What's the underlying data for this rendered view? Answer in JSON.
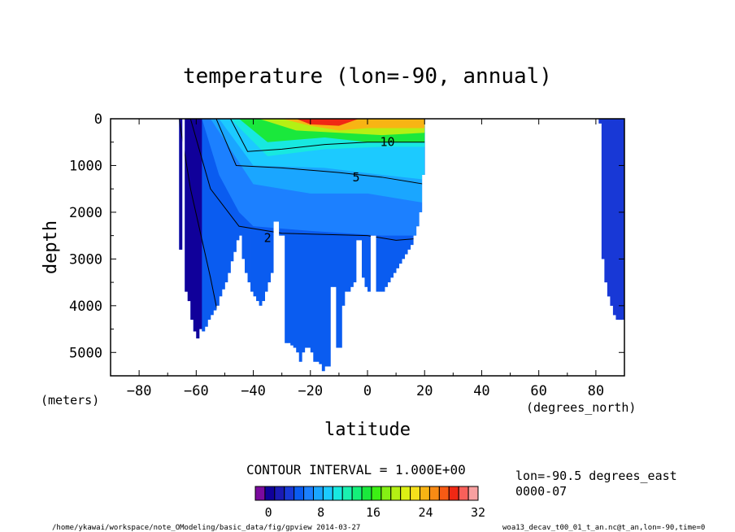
{
  "chart_data": {
    "type": "contour",
    "title": "temperature (lon=-90, annual)",
    "xlabel": "latitude",
    "ylabel": "depth",
    "x_units": "(degrees_north)",
    "y_units": "(meters)",
    "xlim": [
      -90,
      90
    ],
    "ylim": [
      5500,
      0
    ],
    "x_ticks": [
      -80,
      -60,
      -40,
      -20,
      0,
      20,
      40,
      60,
      80
    ],
    "y_ticks": [
      0,
      1000,
      2000,
      3000,
      4000,
      5000
    ],
    "contour_labels": [
      "10",
      "5",
      "2"
    ],
    "contour_interval_text": "CONTOUR INTERVAL = 1.000E+00",
    "colorbar": {
      "labels": [
        "0",
        "8",
        "16",
        "24",
        "32"
      ],
      "values": [
        0,
        8,
        16,
        24,
        32
      ],
      "colors": [
        "#7a0a9e",
        "#10009a",
        "#1a1ab4",
        "#1838d6",
        "#0a5cf0",
        "#1c80ff",
        "#1aa6ff",
        "#1ccaff",
        "#18e8e0",
        "#1af0b0",
        "#14f07a",
        "#1ae83c",
        "#3cf014",
        "#84f014",
        "#b4f014",
        "#dcf014",
        "#f5e01c",
        "#f8b414",
        "#f88a14",
        "#f85a14",
        "#f02814",
        "#f8605a",
        "#f8a0a0"
      ],
      "range": [
        -2,
        32
      ]
    },
    "info_line1": "lon=-90.5 degrees_east",
    "info_line2": "0000-07",
    "footer_left": "/home/ykawai/workspace/note_OModeling/basic_data/fig/gpview  2014-03-27",
    "footer_right": "woa13_decav_t00_01_t_an.nc@t_an,lon=-90,time=0",
    "data_columns": [
      {
        "lat": -65.5,
        "bottom": 2800
      },
      {
        "lat": -63.5,
        "bottom": 3700
      },
      {
        "lat": -62.5,
        "bottom": 3900
      },
      {
        "lat": -61.5,
        "bottom": 4300
      },
      {
        "lat": -60.5,
        "bottom": 4550
      },
      {
        "lat": -59.5,
        "bottom": 4700
      },
      {
        "lat": -58.5,
        "bottom": 4500
      },
      {
        "lat": -57.5,
        "bottom": 4550
      },
      {
        "lat": -56.5,
        "bottom": 4450
      },
      {
        "lat": -55.5,
        "bottom": 4300
      },
      {
        "lat": -54.5,
        "bottom": 4200
      },
      {
        "lat": -53.5,
        "bottom": 4100
      },
      {
        "lat": -52.5,
        "bottom": 4000
      },
      {
        "lat": -51.5,
        "bottom": 3800
      },
      {
        "lat": -50.5,
        "bottom": 3650
      },
      {
        "lat": -49.5,
        "bottom": 3500
      },
      {
        "lat": -48.5,
        "bottom": 3300
      },
      {
        "lat": -47.5,
        "bottom": 3050
      },
      {
        "lat": -46.5,
        "bottom": 2850
      },
      {
        "lat": -45.5,
        "bottom": 2600
      },
      {
        "lat": -44.5,
        "bottom": 2500
      },
      {
        "lat": -43.5,
        "bottom": 3000
      },
      {
        "lat": -42.5,
        "bottom": 3300
      },
      {
        "lat": -41.5,
        "bottom": 3500
      },
      {
        "lat": -40.5,
        "bottom": 3700
      },
      {
        "lat": -39.5,
        "bottom": 3800
      },
      {
        "lat": -38.5,
        "bottom": 3900
      },
      {
        "lat": -37.5,
        "bottom": 4000
      },
      {
        "lat": -36.5,
        "bottom": 3900
      },
      {
        "lat": -35.5,
        "bottom": 3700
      },
      {
        "lat": -34.5,
        "bottom": 3500
      },
      {
        "lat": -33.5,
        "bottom": 3300
      },
      {
        "lat": -32.5,
        "bottom": 2200
      },
      {
        "lat": -31.5,
        "bottom": 2200
      },
      {
        "lat": -30.5,
        "bottom": 2500
      },
      {
        "lat": -29.5,
        "bottom": 2500
      },
      {
        "lat": -28.5,
        "bottom": 4800
      },
      {
        "lat": -27.5,
        "bottom": 4800
      },
      {
        "lat": -26.5,
        "bottom": 4850
      },
      {
        "lat": -25.5,
        "bottom": 4900
      },
      {
        "lat": -24.5,
        "bottom": 5000
      },
      {
        "lat": -23.5,
        "bottom": 5200
      },
      {
        "lat": -22.5,
        "bottom": 5000
      },
      {
        "lat": -21.5,
        "bottom": 4900
      },
      {
        "lat": -20.5,
        "bottom": 4900
      },
      {
        "lat": -19.5,
        "bottom": 5000
      },
      {
        "lat": -18.5,
        "bottom": 5200
      },
      {
        "lat": -17.5,
        "bottom": 5200
      },
      {
        "lat": -16.5,
        "bottom": 5250
      },
      {
        "lat": -15.5,
        "bottom": 5400
      },
      {
        "lat": -14.5,
        "bottom": 5300
      },
      {
        "lat": -13.5,
        "bottom": 5300
      },
      {
        "lat": -12.5,
        "bottom": 3600
      },
      {
        "lat": -11.5,
        "bottom": 3600
      },
      {
        "lat": -10.5,
        "bottom": 4900
      },
      {
        "lat": -9.5,
        "bottom": 4900
      },
      {
        "lat": -8.5,
        "bottom": 4000
      },
      {
        "lat": -7.5,
        "bottom": 3700
      },
      {
        "lat": -6.5,
        "bottom": 3700
      },
      {
        "lat": -5.5,
        "bottom": 3600
      },
      {
        "lat": -4.5,
        "bottom": 3500
      },
      {
        "lat": -3.5,
        "bottom": 2600
      },
      {
        "lat": -2.5,
        "bottom": 2600
      },
      {
        "lat": -1.5,
        "bottom": 3400
      },
      {
        "lat": -0.5,
        "bottom": 3600
      },
      {
        "lat": 0.5,
        "bottom": 3700
      },
      {
        "lat": 1.5,
        "bottom": 2500
      },
      {
        "lat": 2.5,
        "bottom": 2500
      },
      {
        "lat": 3.5,
        "bottom": 3700
      },
      {
        "lat": 4.5,
        "bottom": 3700
      },
      {
        "lat": 5.5,
        "bottom": 3700
      },
      {
        "lat": 6.5,
        "bottom": 3600
      },
      {
        "lat": 7.5,
        "bottom": 3500
      },
      {
        "lat": 8.5,
        "bottom": 3400
      },
      {
        "lat": 9.5,
        "bottom": 3300
      },
      {
        "lat": 10.5,
        "bottom": 3200
      },
      {
        "lat": 11.5,
        "bottom": 3100
      },
      {
        "lat": 12.5,
        "bottom": 3000
      },
      {
        "lat": 13.5,
        "bottom": 2900
      },
      {
        "lat": 14.5,
        "bottom": 2800
      },
      {
        "lat": 15.5,
        "bottom": 2700
      },
      {
        "lat": 16.5,
        "bottom": 2500
      },
      {
        "lat": 17.5,
        "bottom": 2300
      },
      {
        "lat": 18.5,
        "bottom": 2000
      },
      {
        "lat": 19.5,
        "bottom": 1200
      },
      {
        "lat": 79.5,
        "bottom": 0
      },
      {
        "lat": 80.5,
        "bottom": 0
      },
      {
        "lat": 81.5,
        "bottom": 100
      },
      {
        "lat": 82.5,
        "bottom": 3000
      },
      {
        "lat": 83.5,
        "bottom": 3500
      },
      {
        "lat": 84.5,
        "bottom": 3800
      },
      {
        "lat": 85.5,
        "bottom": 4000
      },
      {
        "lat": 86.5,
        "bottom": 4200
      },
      {
        "lat": 87.5,
        "bottom": 4300
      },
      {
        "lat": 88.5,
        "bottom": 4300
      },
      {
        "lat": 89.5,
        "bottom": 4300
      }
    ],
    "bands": [
      {
        "name": "surface-warm",
        "level": 28,
        "color": "#f02814",
        "top_lat": [
          -25,
          -3
        ],
        "points": [
          [
            -25,
            0
          ],
          [
            -15,
            0
          ],
          [
            -5,
            0
          ],
          [
            -3,
            0
          ],
          [
            -10,
            150
          ],
          [
            -20,
            120
          ]
        ]
      },
      {
        "name": "band-20",
        "level": 22,
        "color": "#f8b414",
        "points": [
          [
            -30,
            0
          ],
          [
            20,
            0
          ],
          [
            20,
            200
          ],
          [
            0,
            200
          ],
          [
            -10,
            250
          ],
          [
            -20,
            150
          ]
        ]
      },
      {
        "name": "band-16",
        "level": 16,
        "color": "#b4f014",
        "points": [
          [
            -38,
            0
          ],
          [
            20,
            0
          ],
          [
            20,
            300
          ],
          [
            5,
            350
          ],
          [
            -10,
            300
          ],
          [
            -25,
            250
          ]
        ]
      },
      {
        "name": "band-12",
        "level": 12,
        "color": "#1ae83c",
        "points": [
          [
            -45,
            0
          ],
          [
            20,
            0
          ],
          [
            20,
            500
          ],
          [
            0,
            500
          ],
          [
            -15,
            400
          ],
          [
            -35,
            500
          ]
        ]
      },
      {
        "name": "band-10",
        "level": 10,
        "color": "#18e8e0",
        "points": [
          [
            -48,
            0
          ],
          [
            20,
            0
          ],
          [
            20,
            600
          ],
          [
            5,
            600
          ],
          [
            -15,
            650
          ],
          [
            -35,
            800
          ]
        ]
      },
      {
        "name": "band-6",
        "level": 6,
        "color": "#1ccaff",
        "points": [
          [
            -52,
            0
          ],
          [
            20,
            0
          ],
          [
            20,
            1300
          ],
          [
            5,
            1200
          ],
          [
            -15,
            1050
          ],
          [
            -40,
            1000
          ]
        ]
      },
      {
        "name": "band-4",
        "level": 4,
        "color": "#1aa6ff",
        "points": [
          [
            -55,
            0
          ],
          [
            20,
            0
          ],
          [
            20,
            1800
          ],
          [
            0,
            1600
          ],
          [
            -20,
            1600
          ],
          [
            -40,
            1400
          ]
        ]
      },
      {
        "name": "band-3",
        "level": 3,
        "color": "#1c80ff",
        "points": [
          [
            -58,
            0
          ],
          [
            20,
            0
          ],
          [
            20,
            2500
          ],
          [
            5,
            2500
          ],
          [
            -20,
            2400
          ],
          [
            -40,
            2300
          ],
          [
            -45,
            2000
          ],
          [
            -52,
            1200
          ]
        ]
      }
    ]
  }
}
